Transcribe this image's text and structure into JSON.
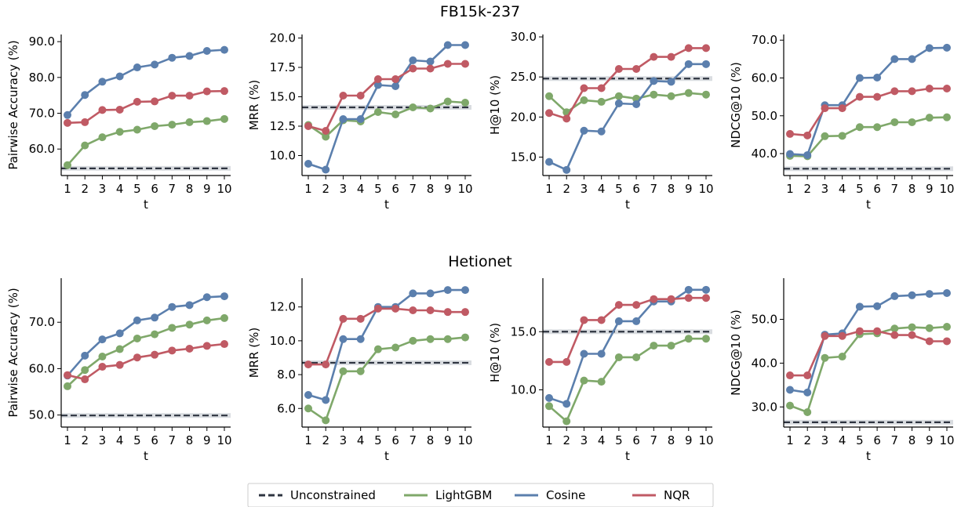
{
  "row_titles": [
    "FB15k-237",
    "Hetionet"
  ],
  "legend": [
    {
      "name": "Unconstrained",
      "color": "#2e3440",
      "style": "dashed"
    },
    {
      "name": "LightGBM",
      "color": "#7fa86a",
      "style": "solid"
    },
    {
      "name": "Cosine",
      "color": "#5b7fad",
      "style": "solid"
    },
    {
      "name": "NQR",
      "color": "#c05a64",
      "style": "solid"
    }
  ],
  "chart_data": [
    {
      "type": "line",
      "dataset": "FB15k-237",
      "xlabel": "t",
      "ylabel": "Pairwise Accuracy (%)",
      "x": [
        1,
        2,
        3,
        4,
        5,
        6,
        7,
        8,
        9,
        10
      ],
      "ylim": [
        52.6,
        92.0
      ],
      "yticks": [
        60.0,
        70.0,
        80.0,
        90.0
      ],
      "unconstrained": 54.6,
      "series": [
        {
          "name": "LightGBM",
          "values": [
            55.5,
            61.0,
            63.3,
            64.8,
            65.4,
            66.4,
            66.8,
            67.5,
            67.8,
            68.4
          ]
        },
        {
          "name": "Cosine",
          "values": [
            69.5,
            75.1,
            78.8,
            80.3,
            82.8,
            83.6,
            85.5,
            86.0,
            87.4,
            87.7
          ]
        },
        {
          "name": "NQR",
          "values": [
            67.3,
            67.5,
            70.9,
            71.0,
            73.2,
            73.3,
            74.9,
            74.9,
            76.1,
            76.2
          ]
        }
      ]
    },
    {
      "type": "line",
      "dataset": "FB15k-237",
      "xlabel": "t",
      "ylabel": "MRR (%)",
      "x": [
        1,
        2,
        3,
        4,
        5,
        6,
        7,
        8,
        9,
        10
      ],
      "ylim": [
        8.3,
        20.3
      ],
      "yticks": [
        10.0,
        12.5,
        15.0,
        17.5,
        20.0
      ],
      "unconstrained": 14.1,
      "series": [
        {
          "name": "LightGBM",
          "values": [
            12.6,
            11.6,
            13.0,
            12.9,
            13.7,
            13.5,
            14.1,
            14.0,
            14.6,
            14.5
          ]
        },
        {
          "name": "Cosine",
          "values": [
            9.3,
            8.8,
            13.1,
            13.1,
            16.0,
            15.9,
            18.1,
            18.0,
            19.4,
            19.4
          ]
        },
        {
          "name": "NQR",
          "values": [
            12.5,
            12.1,
            15.1,
            15.1,
            16.5,
            16.5,
            17.4,
            17.4,
            17.8,
            17.8
          ]
        }
      ]
    },
    {
      "type": "line",
      "dataset": "FB15k-237",
      "xlabel": "t",
      "ylabel": "H@10 (%)",
      "x": [
        1,
        2,
        3,
        4,
        5,
        6,
        7,
        8,
        9,
        10
      ],
      "ylim": [
        12.7,
        30.3
      ],
      "yticks": [
        15.0,
        20.0,
        25.0,
        30.0
      ],
      "unconstrained": 24.8,
      "series": [
        {
          "name": "LightGBM",
          "values": [
            22.6,
            20.6,
            22.1,
            21.9,
            22.6,
            22.3,
            22.8,
            22.6,
            23.0,
            22.8
          ]
        },
        {
          "name": "Cosine",
          "values": [
            14.4,
            13.4,
            18.3,
            18.2,
            21.7,
            21.6,
            24.5,
            24.4,
            26.6,
            26.6
          ]
        },
        {
          "name": "NQR",
          "values": [
            20.5,
            19.8,
            23.6,
            23.6,
            26.0,
            26.0,
            27.5,
            27.5,
            28.6,
            28.6
          ]
        }
      ]
    },
    {
      "type": "line",
      "dataset": "FB15k-237",
      "xlabel": "t",
      "ylabel": "NDCG@10 (%)",
      "x": [
        1,
        2,
        3,
        4,
        5,
        6,
        7,
        8,
        9,
        10
      ],
      "ylim": [
        34.2,
        71.5
      ],
      "yticks": [
        40.0,
        50.0,
        60.0,
        70.0
      ],
      "unconstrained": 36.0,
      "series": [
        {
          "name": "LightGBM",
          "values": [
            39.4,
            39.3,
            44.6,
            44.7,
            47.0,
            47.0,
            48.3,
            48.3,
            49.5,
            49.6
          ]
        },
        {
          "name": "Cosine",
          "values": [
            39.9,
            39.6,
            52.8,
            52.8,
            60.0,
            60.1,
            65.0,
            65.0,
            67.9,
            68.0
          ]
        },
        {
          "name": "NQR",
          "values": [
            45.2,
            44.8,
            52.0,
            52.0,
            55.0,
            55.0,
            56.5,
            56.5,
            57.2,
            57.2
          ]
        }
      ]
    },
    {
      "type": "line",
      "dataset": "Hetionet",
      "xlabel": "t",
      "ylabel": "Pairwise Accuracy (%)",
      "x": [
        1,
        2,
        3,
        4,
        5,
        6,
        7,
        8,
        9,
        10
      ],
      "ylim": [
        47.4,
        79.5
      ],
      "yticks": [
        50.0,
        60.0,
        70.0
      ],
      "unconstrained": 49.9,
      "series": [
        {
          "name": "LightGBM",
          "values": [
            56.2,
            59.7,
            62.6,
            64.2,
            66.5,
            67.4,
            68.8,
            69.5,
            70.4,
            70.9
          ]
        },
        {
          "name": "Cosine",
          "values": [
            58.5,
            62.8,
            66.3,
            67.6,
            70.4,
            71.0,
            73.3,
            73.7,
            75.4,
            75.6
          ]
        },
        {
          "name": "NQR",
          "values": [
            58.6,
            57.7,
            60.4,
            60.8,
            62.4,
            63.0,
            63.9,
            64.3,
            64.9,
            65.3
          ]
        }
      ]
    },
    {
      "type": "line",
      "dataset": "Hetionet",
      "xlabel": "t",
      "ylabel": "MRR (%)",
      "x": [
        1,
        2,
        3,
        4,
        5,
        6,
        7,
        8,
        9,
        10
      ],
      "ylim": [
        4.9,
        13.7
      ],
      "yticks": [
        6.0,
        8.0,
        10.0,
        12.0
      ],
      "unconstrained": 8.7,
      "series": [
        {
          "name": "LightGBM",
          "values": [
            6.0,
            5.3,
            8.2,
            8.2,
            9.5,
            9.6,
            10.0,
            10.1,
            10.1,
            10.2
          ]
        },
        {
          "name": "Cosine",
          "values": [
            6.8,
            6.5,
            10.1,
            10.1,
            12.0,
            12.0,
            12.8,
            12.8,
            13.0,
            13.0
          ]
        },
        {
          "name": "NQR",
          "values": [
            8.6,
            8.6,
            11.3,
            11.3,
            11.9,
            11.9,
            11.8,
            11.8,
            11.7,
            11.7
          ]
        }
      ]
    },
    {
      "type": "line",
      "dataset": "Hetionet",
      "xlabel": "t",
      "ylabel": "H@10 (%)",
      "x": [
        1,
        2,
        3,
        4,
        5,
        6,
        7,
        8,
        9,
        10
      ],
      "ylim": [
        6.8,
        19.6
      ],
      "yticks": [
        10.0,
        15.0
      ],
      "unconstrained": 15.0,
      "series": [
        {
          "name": "LightGBM",
          "values": [
            8.6,
            7.3,
            10.8,
            10.7,
            12.8,
            12.8,
            13.8,
            13.8,
            14.4,
            14.4
          ]
        },
        {
          "name": "Cosine",
          "values": [
            9.3,
            8.8,
            13.1,
            13.1,
            15.9,
            15.9,
            17.6,
            17.6,
            18.6,
            18.6
          ]
        },
        {
          "name": "NQR",
          "values": [
            12.4,
            12.4,
            16.0,
            16.0,
            17.3,
            17.3,
            17.8,
            17.8,
            17.9,
            17.9
          ]
        }
      ]
    },
    {
      "type": "line",
      "dataset": "Hetionet",
      "xlabel": "t",
      "ylabel": "NDCG@10 (%)",
      "x": [
        1,
        2,
        3,
        4,
        5,
        6,
        7,
        8,
        9,
        10
      ],
      "ylim": [
        25.4,
        59.4
      ],
      "yticks": [
        30.0,
        40.0,
        50.0
      ],
      "unconstrained": 26.5,
      "series": [
        {
          "name": "LightGBM",
          "values": [
            30.3,
            28.8,
            41.2,
            41.5,
            46.6,
            46.8,
            47.9,
            48.2,
            48.0,
            48.3
          ]
        },
        {
          "name": "Cosine",
          "values": [
            33.9,
            33.3,
            46.5,
            46.8,
            52.9,
            53.0,
            55.3,
            55.5,
            55.8,
            56.0
          ]
        },
        {
          "name": "NQR",
          "values": [
            37.2,
            37.2,
            46.2,
            46.2,
            47.3,
            47.3,
            46.4,
            46.4,
            45.0,
            45.0
          ]
        }
      ]
    }
  ]
}
